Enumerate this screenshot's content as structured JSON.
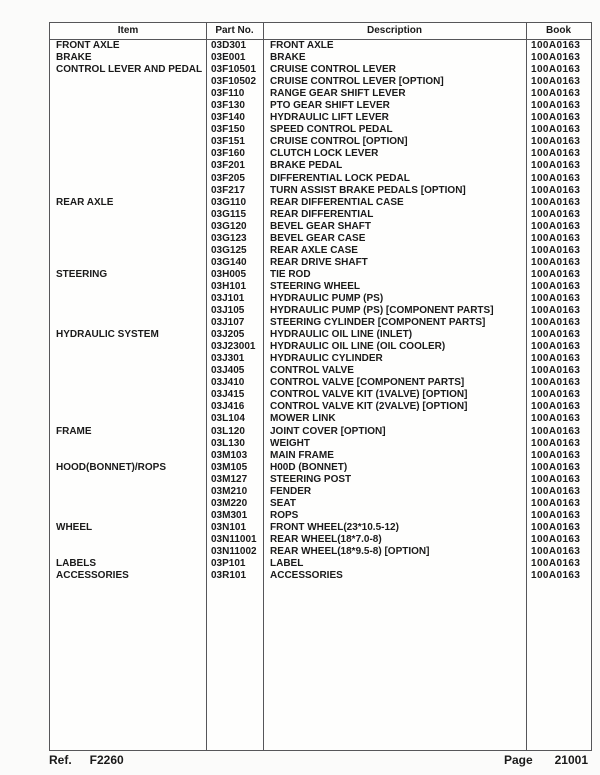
{
  "page": {
    "background_color": "#fbfbfa",
    "grid_line_color": "#565659",
    "text_color": "#1a1a1a"
  },
  "table": {
    "headers": [
      "Item",
      "Part No.",
      "Description",
      "Book"
    ],
    "rows": [
      {
        "item": "FRONT AXLE",
        "part_no": "03D301",
        "description": "FRONT AXLE",
        "book": "100A0163"
      },
      {
        "item": "BRAKE",
        "part_no": "03E001",
        "description": "BRAKE",
        "book": "100A0163"
      },
      {
        "item": "CONTROL LEVER AND PEDAL",
        "part_no": "03F10501",
        "description": "CRUISE CONTROL LEVER",
        "book": "100A0163"
      },
      {
        "item": "",
        "part_no": "03F10502",
        "description": "CRUISE CONTROL LEVER [OPTION]",
        "book": "100A0163"
      },
      {
        "item": "",
        "part_no": "03F110",
        "description": "RANGE GEAR SHIFT LEVER",
        "book": "100A0163"
      },
      {
        "item": "",
        "part_no": "03F130",
        "description": "PTO GEAR SHIFT LEVER",
        "book": "100A0163"
      },
      {
        "item": "",
        "part_no": "03F140",
        "description": "HYDRAULIC LIFT LEVER",
        "book": "100A0163"
      },
      {
        "item": "",
        "part_no": "03F150",
        "description": "SPEED CONTROL PEDAL",
        "book": "100A0163"
      },
      {
        "item": "",
        "part_no": "03F151",
        "description": "CRUISE CONTROL [OPTION]",
        "book": "100A0163"
      },
      {
        "item": "",
        "part_no": "03F160",
        "description": "CLUTCH LOCK LEVER",
        "book": "100A0163"
      },
      {
        "item": "",
        "part_no": "03F201",
        "description": "BRAKE PEDAL",
        "book": "100A0163"
      },
      {
        "item": "",
        "part_no": "03F205",
        "description": "DIFFERENTIAL LOCK PEDAL",
        "book": "100A0163"
      },
      {
        "item": "",
        "part_no": "03F217",
        "description": "TURN ASSIST BRAKE PEDALS [OPTION]",
        "book": "100A0163"
      },
      {
        "item": "REAR AXLE",
        "part_no": "03G110",
        "description": "REAR DIFFERENTIAL CASE",
        "book": "100A0163"
      },
      {
        "item": "",
        "part_no": "03G115",
        "description": "REAR DIFFERENTIAL",
        "book": "100A0163"
      },
      {
        "item": "",
        "part_no": "03G120",
        "description": "BEVEL GEAR SHAFT",
        "book": "100A0163"
      },
      {
        "item": "",
        "part_no": "03G123",
        "description": "BEVEL GEAR CASE",
        "book": "100A0163"
      },
      {
        "item": "",
        "part_no": "03G125",
        "description": "REAR AXLE CASE",
        "book": "100A0163"
      },
      {
        "item": "",
        "part_no": "03G140",
        "description": "REAR DRIVE SHAFT",
        "book": "100A0163"
      },
      {
        "item": "STEERING",
        "part_no": "03H005",
        "description": "TIE ROD",
        "book": "100A0163"
      },
      {
        "item": "",
        "part_no": "03H101",
        "description": "STEERING WHEEL",
        "book": "100A0163"
      },
      {
        "item": "",
        "part_no": "03J101",
        "description": "HYDRAULIC PUMP (PS)",
        "book": "100A0163"
      },
      {
        "item": "",
        "part_no": "03J105",
        "description": "HYDRAULIC PUMP (PS) [COMPONENT PARTS]",
        "book": "100A0163"
      },
      {
        "item": "",
        "part_no": "03J107",
        "description": "STEERING CYLINDER [COMPONENT PARTS]",
        "book": "100A0163"
      },
      {
        "item": "HYDRAULIC SYSTEM",
        "part_no": "03J205",
        "description": "HYDRAULIC OIL LINE (INLET)",
        "book": "100A0163"
      },
      {
        "item": "",
        "part_no": "03J23001",
        "description": "HYDRAULIC OIL LINE (OIL COOLER)",
        "book": "100A0163"
      },
      {
        "item": "",
        "part_no": "03J301",
        "description": "HYDRAULIC CYLINDER",
        "book": "100A0163"
      },
      {
        "item": "",
        "part_no": "03J405",
        "description": "CONTROL VALVE",
        "book": "100A0163"
      },
      {
        "item": "",
        "part_no": "03J410",
        "description": "CONTROL VALVE [COMPONENT PARTS]",
        "book": "100A0163"
      },
      {
        "item": "",
        "part_no": "03J415",
        "description": "CONTROL VALVE KIT (1VALVE) [OPTION]",
        "book": "100A0163"
      },
      {
        "item": "",
        "part_no": "03J416",
        "description": "CONTROL VALVE KIT (2VALVE) [OPTION]",
        "book": "100A0163"
      },
      {
        "item": "",
        "part_no": "03L104",
        "description": "MOWER LINK",
        "book": "100A0163"
      },
      {
        "item": "FRAME",
        "part_no": "03L120",
        "description": "JOINT COVER [OPTION]",
        "book": "100A0163"
      },
      {
        "item": "",
        "part_no": "03L130",
        "description": "WEIGHT",
        "book": "100A0163"
      },
      {
        "item": "",
        "part_no": "03M103",
        "description": "MAIN FRAME",
        "book": "100A0163"
      },
      {
        "item": "HOOD(BONNET)/ROPS",
        "part_no": "03M105",
        "description": "H00D (BONNET)",
        "book": "100A0163"
      },
      {
        "item": "",
        "part_no": "03M127",
        "description": "STEERING POST",
        "book": "100A0163"
      },
      {
        "item": "",
        "part_no": "03M210",
        "description": "FENDER",
        "book": "100A0163"
      },
      {
        "item": "",
        "part_no": "03M220",
        "description": "SEAT",
        "book": "100A0163"
      },
      {
        "item": "",
        "part_no": "03M301",
        "description": "ROPS",
        "book": "100A0163"
      },
      {
        "item": "WHEEL",
        "part_no": "03N101",
        "description": "FRONT WHEEL(23*10.5-12)",
        "book": "100A0163"
      },
      {
        "item": "",
        "part_no": "03N11001",
        "description": "REAR WHEEL(18*7.0-8)",
        "book": "100A0163"
      },
      {
        "item": "",
        "part_no": "03N11002",
        "description": "REAR WHEEL(18*9.5-8) [OPTION]",
        "book": "100A0163"
      },
      {
        "item": "LABELS",
        "part_no": "03P101",
        "description": "LABEL",
        "book": "100A0163"
      },
      {
        "item": "ACCESSORIES",
        "part_no": "03R101",
        "description": "ACCESSORIES",
        "book": "100A0163"
      }
    ]
  },
  "footer": {
    "ref_label": "Ref.",
    "ref_value": "F2260",
    "page_label": "Page",
    "page_value": "21001"
  }
}
